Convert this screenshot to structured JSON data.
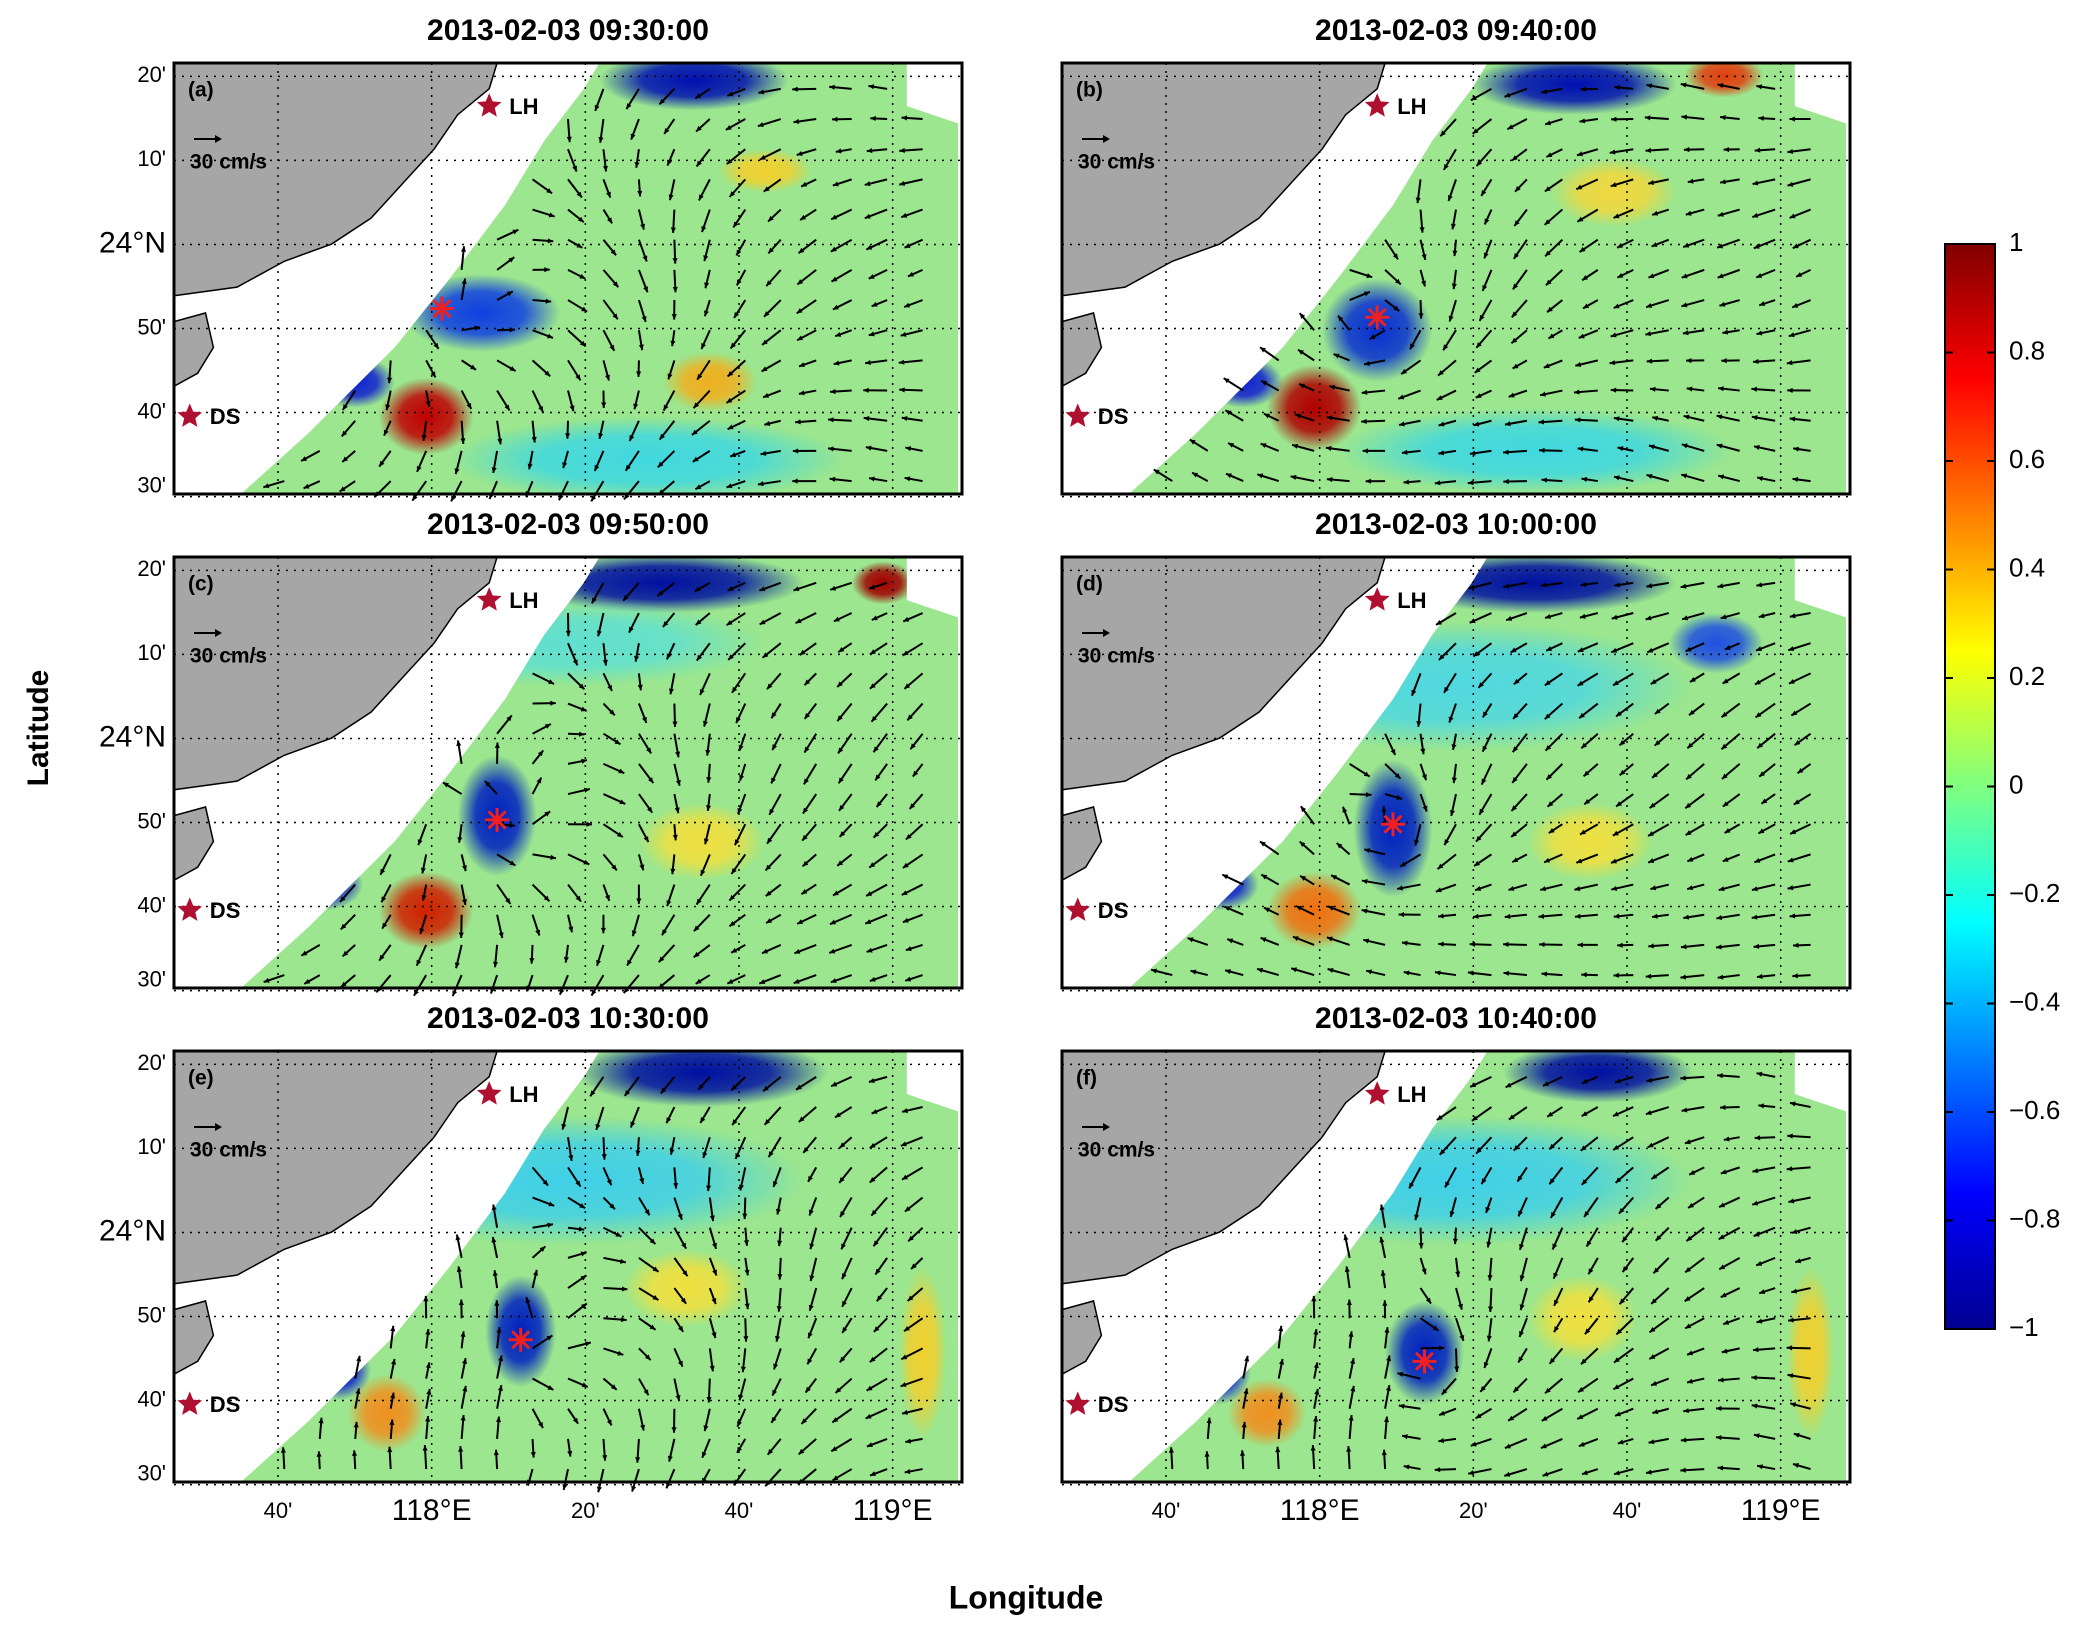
{
  "panels": [
    {
      "title": "2013-02-03 09:30:00",
      "label": "(a)",
      "station_north": "LH",
      "station_south": "DS",
      "scale": "30 cm/s"
    },
    {
      "title": "2013-02-03 09:40:00",
      "label": "(b)",
      "station_north": "LH",
      "station_south": "DS",
      "scale": "30 cm/s"
    },
    {
      "title": "2013-02-03 09:50:00",
      "label": "(c)",
      "station_north": "LH",
      "station_south": "DS",
      "scale": "30 cm/s"
    },
    {
      "title": "2013-02-03 10:00:00",
      "label": "(d)",
      "station_north": "LH",
      "station_south": "DS",
      "scale": "30 cm/s"
    },
    {
      "title": "2013-02-03 10:30:00",
      "label": "(e)",
      "station_north": "LH",
      "station_south": "DS",
      "scale": "30 cm/s"
    },
    {
      "title": "2013-02-03 10:40:00",
      "label": "(f)",
      "station_north": "LH",
      "station_south": "DS",
      "scale": "30 cm/s"
    }
  ],
  "axes": {
    "xlabel": "Longitude",
    "ylabel": "Latitude",
    "lat_ticks": [
      "20'",
      "10'",
      "24°N",
      "50'",
      "40'",
      "30'"
    ],
    "lon_ticks": [
      "40'",
      "118°E",
      "20'",
      "40'",
      "119°E"
    ]
  },
  "colorbar": {
    "lim": [
      -1,
      1
    ],
    "ticks": [
      1,
      0.8,
      0.6,
      0.4,
      0.2,
      0,
      {
        "value": -0.2,
        "label": "−0.2"
      },
      {
        "value": -0.4,
        "label": "−0.4"
      },
      {
        "value": -0.6,
        "label": "−0.6"
      },
      {
        "value": -0.8,
        "label": "−0.8"
      },
      {
        "value": -1,
        "label": "−1"
      }
    ]
  }
}
